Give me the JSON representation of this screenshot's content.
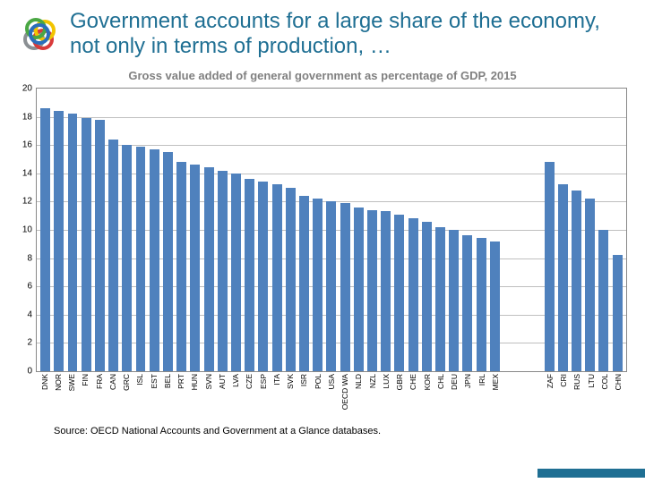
{
  "title": "Government accounts for a large share of the economy, not only in terms of production, …",
  "title_color": "#1f6f93",
  "subtitle": "Gross value added of general government as percentage of GDP, 2015",
  "subtitle_color": "#808080",
  "source": "Source: OECD National Accounts and Government at a Glance databases.",
  "chart": {
    "type": "bar",
    "ylim": [
      0,
      20
    ],
    "ytick_step": 2,
    "yticks": [
      0,
      2,
      4,
      6,
      8,
      10,
      12,
      14,
      16,
      18,
      20
    ],
    "grid_color": "#bfbfbf",
    "bar_color": "#4f81bd",
    "background_color": "#ffffff",
    "axis_color": "#888888",
    "label_fontsize": 8.5,
    "tick_fontsize": 10,
    "gap_after_index": 35,
    "categories": [
      "DNK",
      "NOR",
      "SWE",
      "FIN",
      "FRA",
      "CAN",
      "GRC",
      "ISL",
      "EST",
      "BEL",
      "PRT",
      "HUN",
      "SVN",
      "AUT",
      "LVA",
      "CZE",
      "ESP",
      "ITA",
      "SVK",
      "ISR",
      "POL",
      "USA",
      "OECD WA",
      "NLD",
      "NZL",
      "LUX",
      "GBR",
      "CHE",
      "KOR",
      "CHL",
      "DEU",
      "JPN",
      "IRL",
      "MEX",
      "",
      "",
      "ZAF",
      "CRI",
      "RUS",
      "LTU",
      "COL",
      "CHN"
    ],
    "values": [
      18.6,
      18.4,
      18.2,
      17.9,
      17.8,
      16.4,
      16.0,
      15.9,
      15.7,
      15.5,
      14.8,
      14.6,
      14.4,
      14.2,
      14.0,
      13.6,
      13.4,
      13.2,
      13.0,
      12.4,
      12.2,
      12.0,
      11.9,
      11.6,
      11.4,
      11.3,
      11.1,
      10.8,
      10.6,
      10.2,
      10.0,
      9.6,
      9.4,
      9.2,
      null,
      null,
      14.8,
      13.2,
      12.8,
      12.2,
      10.0,
      8.2
    ]
  },
  "logo_colors": {
    "blue": "#2a6ebb",
    "green": "#4aa744",
    "yellow": "#f2c400",
    "red": "#d93a3a",
    "gray": "#8a8f93"
  },
  "footer_bar_color": "#1f6f93"
}
